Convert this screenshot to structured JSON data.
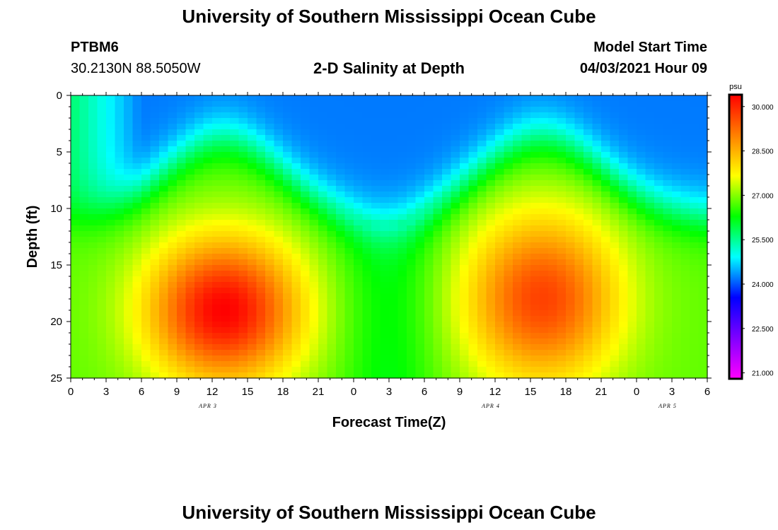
{
  "header": {
    "title": "University of Southern Mississippi Ocean Cube",
    "station_id": "PTBM6",
    "station_coords": "30.2130N  88.5050W",
    "subtitle": "2-D Salinity at Depth",
    "model_start_label": "Model Start Time",
    "model_start_value": "04/03/2021 Hour 09"
  },
  "footer": {
    "title": "University of Southern Mississippi Ocean Cube"
  },
  "chart_data": {
    "type": "heatmap",
    "xlabel": "Forecast Time(Z)",
    "ylabel": "Depth (ft)",
    "x_ticks": [
      "0",
      "3",
      "6",
      "9",
      "12",
      "15",
      "18",
      "21",
      "0",
      "3",
      "6",
      "9",
      "12",
      "15",
      "18",
      "21",
      "0",
      "3",
      "6"
    ],
    "x_range_hours": [
      0,
      54
    ],
    "date_labels": [
      {
        "label": "APR 3",
        "hour": 12
      },
      {
        "label": "APR 4",
        "hour": 36
      },
      {
        "label": "APR 5",
        "hour": 51
      }
    ],
    "y_ticks": [
      0,
      5,
      10,
      15,
      20,
      25
    ],
    "ylim": [
      0,
      25
    ],
    "y_inverted": true,
    "colorbar": {
      "unit": "psu",
      "range": [
        20.8,
        30.4
      ],
      "tick_labels": [
        "21.000",
        "22.500",
        "24.000",
        "25.500",
        "27.000",
        "28.500",
        "30.000"
      ],
      "colors": [
        "#ff00ff",
        "#8000ff",
        "#0000ff",
        "#00ffff",
        "#00ff00",
        "#ffff00",
        "#ff8000",
        "#ff0000"
      ]
    },
    "description_fields": {
      "surface_layer_salinity": 24.2,
      "peak1": {
        "hour": 13,
        "depth_ft": 19,
        "salinity": 30.4
      },
      "peak2": {
        "hour": 40,
        "depth_ft": 18,
        "salinity": 29.7
      }
    }
  }
}
